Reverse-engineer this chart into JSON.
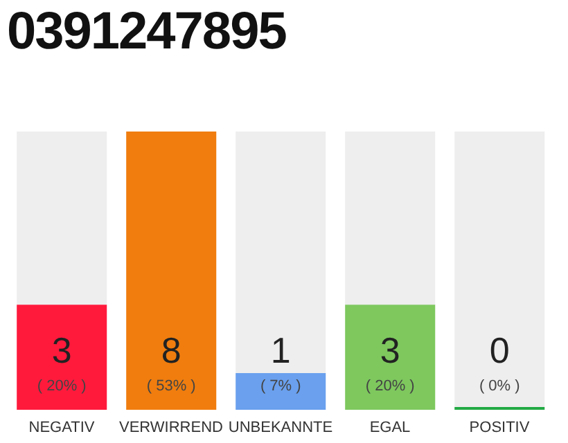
{
  "chart_data": {
    "type": "bar",
    "title": "0391247895",
    "categories": [
      "NEGATIV",
      "VERWIRREND",
      "UNBEKANNTE",
      "EGAL",
      "POSITIV"
    ],
    "values": [
      20,
      53,
      7,
      20,
      0
    ],
    "colors": [
      "#ff1a3c",
      "#f07d0e",
      "#6aa0ee",
      "#7ec85e",
      "#22aa44"
    ],
    "value_labels": [
      "( 20% )",
      "( 53% )",
      "( 7% )",
      "( 20% )",
      "( 0% )"
    ],
    "annotations": [
      "3",
      "8",
      "1",
      "3",
      "0"
    ],
    "grid": false,
    "legend": false
  }
}
